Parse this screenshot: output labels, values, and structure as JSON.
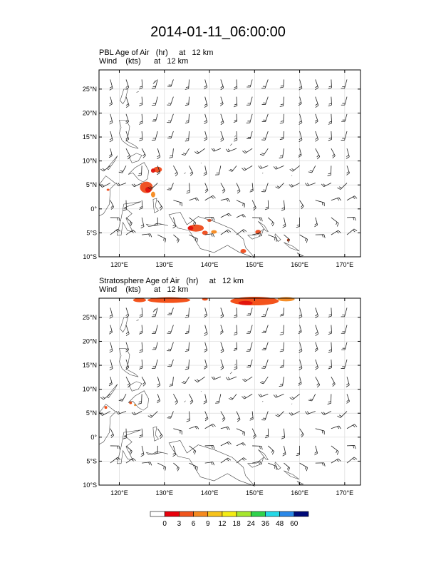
{
  "title": "2014-01-11_06:00:00",
  "panels": [
    {
      "line1": "PBL Age of Air   (hr)     at   12 km",
      "line2": "Wind    (kts)      at   12 km"
    },
    {
      "line1": "Stratosphere Age of Air   (hr)     at   12 km",
      "line2": "Wind    (kts)      at   12 km"
    }
  ],
  "axes": {
    "lon_labels": [
      "120°E",
      "130°E",
      "140°E",
      "150°E",
      "160°E",
      "170°E"
    ],
    "lat_labels": [
      "25°N",
      "20°N",
      "15°N",
      "10°N",
      "5°N",
      "0°",
      "5°S",
      "10°S"
    ],
    "lon_range": [
      115.5,
      173.5
    ],
    "lat_range": [
      -10,
      29
    ]
  },
  "colorbar": {
    "labels": [
      "0",
      "3",
      "6",
      "9",
      "12",
      "18",
      "24",
      "36",
      "48",
      "60"
    ],
    "colors": [
      "#ffffff",
      "#e8000b",
      "#f0541c",
      "#f5891e",
      "#f7c31b",
      "#f4ec14",
      "#a6e62e",
      "#2fd24b",
      "#25d8e6",
      "#2a88e8",
      "#000a78"
    ]
  },
  "colors": {
    "pbl_patch": "#ee4a1a",
    "strat_patch": "#f24a10",
    "coast": "#444444",
    "grid": "#d9d9d9"
  }
}
